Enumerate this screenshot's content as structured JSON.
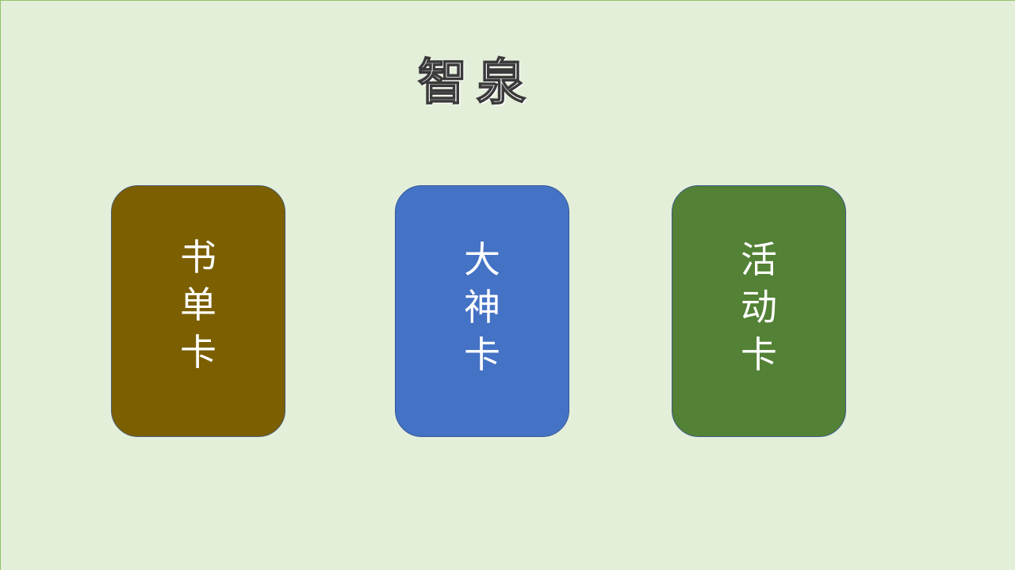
{
  "title": "智泉",
  "cards": [
    {
      "chars": [
        "书",
        "单",
        "卡"
      ],
      "color": "#7b5f00"
    },
    {
      "chars": [
        "大",
        "神",
        "卡"
      ],
      "color": "#4472c4"
    },
    {
      "chars": [
        "活",
        "动",
        "卡"
      ],
      "color": "#538135"
    }
  ]
}
